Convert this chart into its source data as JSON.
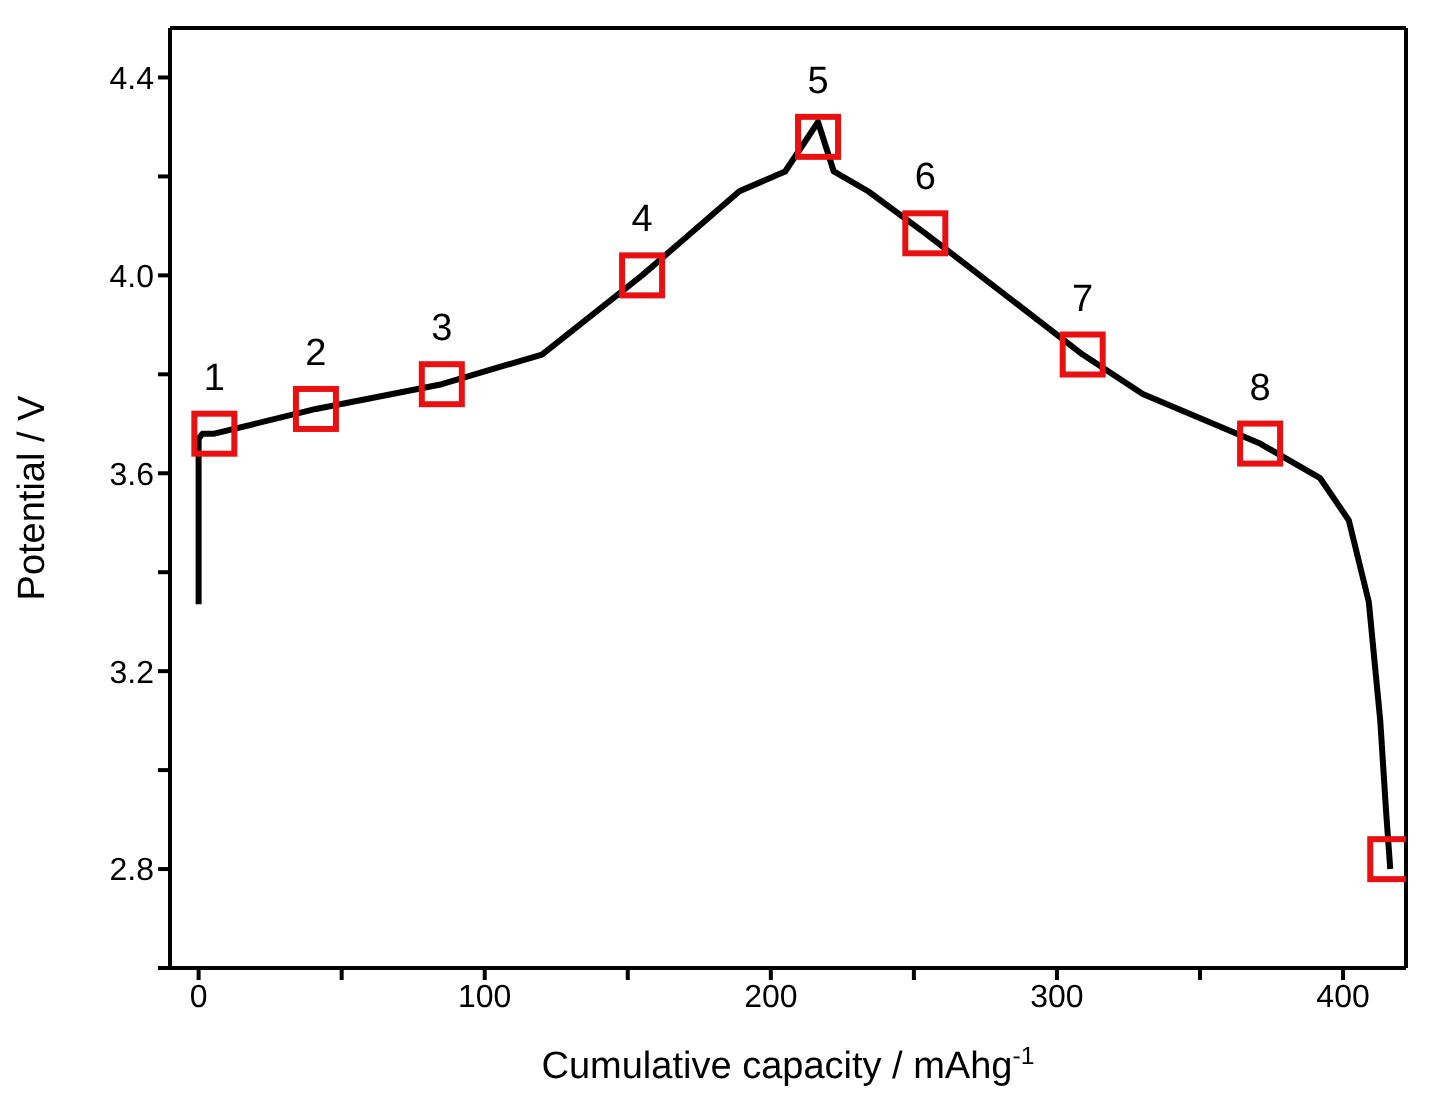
{
  "chart_data": {
    "type": "line",
    "xlabel": "Cumulative capacity / mAhg$^{-1}$",
    "ylabel": "Potential / V",
    "xlim": [
      -10,
      422
    ],
    "xticks": [
      0,
      {
        "value": 50,
        "label": null
      },
      100,
      {
        "value": 150,
        "label": null
      },
      200,
      {
        "value": 250,
        "label": null
      },
      300,
      {
        "value": 350,
        "label": null
      },
      400
    ],
    "ylim": [
      2.6,
      4.5
    ],
    "yticks": [
      {
        "value": 2.6,
        "label": null
      },
      2.8,
      {
        "value": 3.0,
        "label": null
      },
      3.2,
      {
        "value": 3.4,
        "label": null
      },
      3.6,
      {
        "value": 3.8,
        "label": null
      },
      {
        "value": 4.0,
        "label": "4.0"
      },
      {
        "value": 4.2,
        "label": null
      },
      4.4
    ],
    "grid": false,
    "series": [
      {
        "color": "#000000",
        "marker": "none",
        "line_style": "solid",
        "x": [
          0,
          0,
          1.4,
          5.5,
          41,
          85,
          120,
          155,
          189,
          205,
          216.5,
          222,
          234,
          254,
          309,
          330,
          371,
          392,
          402,
          409,
          413,
          415,
          416.5
        ],
        "values": [
          3.335,
          3.67,
          3.68,
          3.68,
          3.73,
          3.78,
          3.84,
          4.0,
          4.17,
          4.21,
          4.31,
          4.21,
          4.17,
          4.085,
          3.84,
          3.76,
          3.66,
          3.59,
          3.505,
          3.34,
          3.1,
          2.92,
          2.8
        ]
      },
      {
        "type": "scatter",
        "color": "#e81010",
        "marker": "square",
        "x": [
          5.5,
          41,
          85,
          155,
          216.5,
          254,
          309,
          371,
          416.5
        ],
        "values": [
          3.68,
          3.73,
          3.78,
          4.0,
          4.28,
          4.085,
          3.84,
          3.66,
          2.82
        ]
      }
    ],
    "annotations": [
      {
        "text": "1",
        "x": 5.5,
        "y": 3.68
      },
      {
        "text": "2",
        "x": 41,
        "y": 3.73
      },
      {
        "text": "3",
        "x": 85,
        "y": 3.78
      },
      {
        "text": "4",
        "x": 155,
        "y": 4.0
      },
      {
        "text": "5",
        "x": 216.5,
        "y": 4.28
      },
      {
        "text": "6",
        "x": 254,
        "y": 4.085
      },
      {
        "text": "7",
        "x": 309,
        "y": 3.84
      },
      {
        "text": "8",
        "x": 371,
        "y": 3.66
      }
    ]
  }
}
